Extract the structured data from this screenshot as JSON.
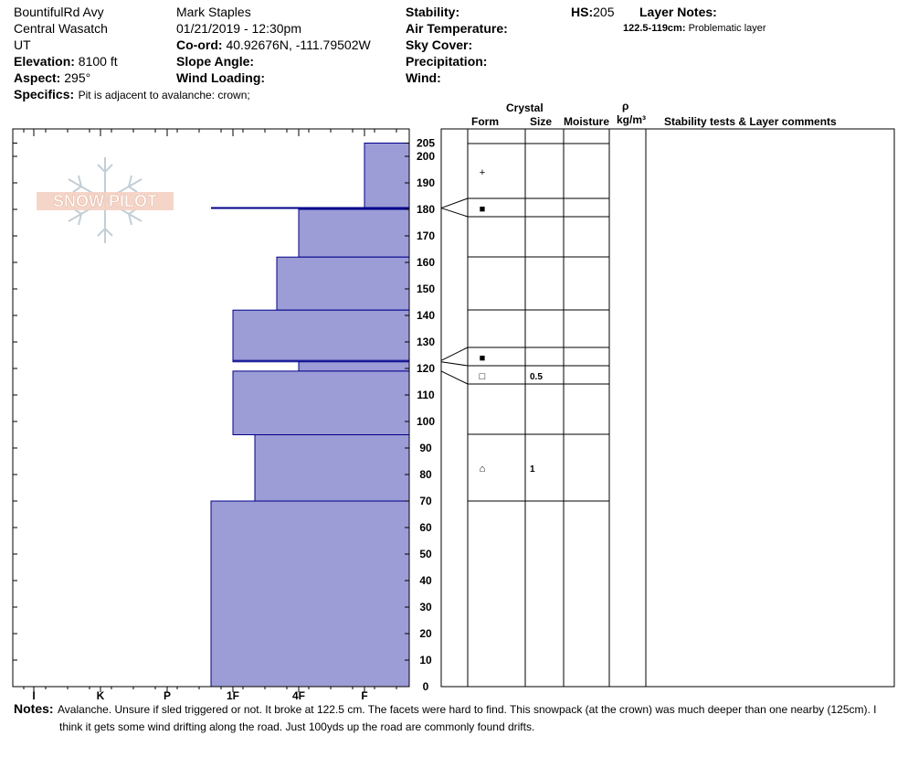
{
  "header": {
    "col1": [
      "BountifulRd Avy",
      "Central Wasatch",
      "UT"
    ],
    "elevation_label": "Elevation:",
    "elevation_value": "8100 ft",
    "aspect_label": "Aspect:",
    "aspect_value": "295°",
    "specifics_label": "Specifics:",
    "specifics_value": "Pit is adjacent to avalanche: crown;",
    "observer": "Mark Staples",
    "datetime": "01/21/2019 - 12:30pm",
    "coord_label": "Co-ord:",
    "coord_value": "40.92676N, -111.79502W",
    "slope_label": "Slope Angle:",
    "wind_loading_label": "Wind Loading:",
    "stability_label": "Stability:",
    "air_temp_label": "Air Temperature:",
    "sky_label": "Sky Cover:",
    "precip_label": "Precipitation:",
    "wind_label": "Wind:",
    "hs_label": "HS:",
    "hs_value": "205",
    "layer_notes_label": "Layer Notes:",
    "layer_note_range": "122.5-119cm:",
    "layer_note_text": "Problematic layer"
  },
  "logo_text": "SNOW PILOT",
  "table_headers": {
    "crystal": "Crystal",
    "form": "Form",
    "size": "Size",
    "moisture": "Moisture",
    "rho": "ρ",
    "density_unit": "kg/m³",
    "stability": "Stability tests & Layer comments"
  },
  "notes": {
    "label": "Notes:",
    "line1": "Avalanche. Unsure if sled triggered or not. It broke at 122.5 cm. The facets were hard to find. This snowpack (at the crown) was much deeper than one nearby (125cm). I",
    "line2": "think it gets some wind drifting along the road. Just 100yds up the road are commonly found drifts."
  },
  "chart_data": {
    "type": "bar",
    "title": "",
    "xlabel": "",
    "ylabel": "",
    "ylim": [
      0,
      210
    ],
    "x_tick_labels": [
      "I",
      "K",
      "P",
      "1F",
      "4F",
      "F"
    ],
    "y_tick_labels": [
      0,
      10,
      20,
      30,
      40,
      50,
      60,
      70,
      80,
      90,
      100,
      110,
      120,
      130,
      140,
      150,
      160,
      170,
      180,
      190,
      200,
      205
    ],
    "hardness_scale": [
      "F",
      "4F",
      "1F",
      "P",
      "K",
      "I"
    ],
    "layers": [
      {
        "top": 205,
        "bottom": 180.5,
        "hardness": "F-"
      },
      {
        "top": 180.5,
        "bottom": 180,
        "hardness": "1F+",
        "line": true
      },
      {
        "top": 180,
        "bottom": 162,
        "hardness": "4F"
      },
      {
        "top": 162,
        "bottom": 142,
        "hardness": "4F+"
      },
      {
        "top": 142,
        "bottom": 123,
        "hardness": "1F+"
      },
      {
        "top": 123,
        "bottom": 122.5,
        "hardness": "1F+"
      },
      {
        "top": 122.5,
        "bottom": 119,
        "hardness": "4F"
      },
      {
        "top": 119,
        "bottom": 95,
        "hardness": "1F+"
      },
      {
        "top": 95,
        "bottom": 70,
        "hardness": "4F-"
      },
      {
        "top": 70,
        "bottom": 0,
        "hardness": "1F-"
      }
    ],
    "crystal_table": [
      {
        "top": 205,
        "bottom": 181,
        "form": "+",
        "size": ""
      },
      {
        "top": 181,
        "bottom": 180,
        "form": "■",
        "size": ""
      },
      {
        "top": 180,
        "bottom": 162,
        "form": "",
        "size": ""
      },
      {
        "top": 162,
        "bottom": 142,
        "form": "",
        "size": ""
      },
      {
        "top": 142,
        "bottom": 128,
        "form": "",
        "size": ""
      },
      {
        "top": 128,
        "bottom": 122.5,
        "form": "■",
        "size": ""
      },
      {
        "top": 122.5,
        "bottom": 119,
        "form": "",
        "size": ""
      },
      {
        "top": 119,
        "bottom": 114,
        "form": "□",
        "size": "0.5"
      },
      {
        "top": 114,
        "bottom": 95,
        "form": "",
        "size": ""
      },
      {
        "top": 95,
        "bottom": 70,
        "form": "⌂",
        "size": "1"
      },
      {
        "top": 70,
        "bottom": 0,
        "form": "",
        "size": ""
      }
    ]
  }
}
